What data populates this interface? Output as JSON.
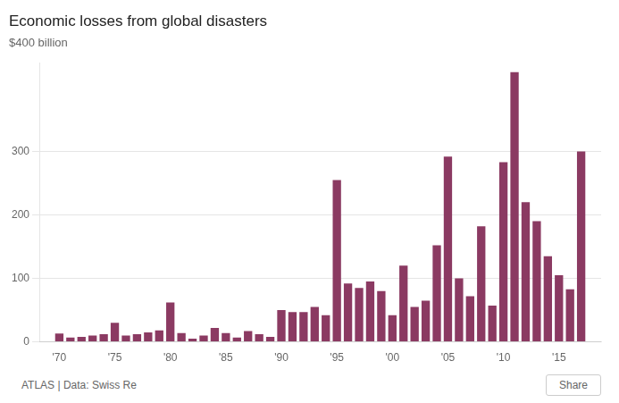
{
  "chart_data": {
    "type": "bar",
    "title": "Economic losses from global disasters",
    "subtitle": "$400 billion",
    "annotations": [
      "ATLAS | Data:  Swiss Re",
      "Share"
    ],
    "x": [
      1970,
      1971,
      1972,
      1973,
      1974,
      1975,
      1976,
      1977,
      1978,
      1979,
      1980,
      1981,
      1982,
      1983,
      1984,
      1985,
      1986,
      1987,
      1988,
      1989,
      1990,
      1991,
      1992,
      1993,
      1994,
      1995,
      1996,
      1997,
      1998,
      1999,
      2000,
      2001,
      2002,
      2003,
      2004,
      2005,
      2006,
      2007,
      2008,
      2009,
      2010,
      2011,
      2012,
      2013,
      2014,
      2015,
      2016,
      2017
    ],
    "values": [
      13,
      7,
      8,
      10,
      12,
      30,
      10,
      12,
      15,
      18,
      62,
      14,
      5,
      10,
      22,
      14,
      7,
      17,
      12,
      8,
      50,
      47,
      47,
      55,
      42,
      255,
      92,
      85,
      95,
      80,
      42,
      120,
      55,
      65,
      152,
      292,
      100,
      72,
      182,
      57,
      283,
      425,
      220,
      190,
      135,
      105,
      83,
      300
    ],
    "color": "#8B3A62",
    "xlim": [
      1968.2,
      2018.8
    ],
    "xticks": [
      {
        "value": 1970,
        "label": "'70"
      },
      {
        "value": 1975,
        "label": "'75"
      },
      {
        "value": 1980,
        "label": "'80"
      },
      {
        "value": 1985,
        "label": "'85"
      },
      {
        "value": 1990,
        "label": "'90"
      },
      {
        "value": 1995,
        "label": "'95"
      },
      {
        "value": 2000,
        "label": "'00"
      },
      {
        "value": 2005,
        "label": "'05"
      },
      {
        "value": 2010,
        "label": "'10"
      },
      {
        "value": 2015,
        "label": "'15"
      }
    ],
    "ylim": [
      0,
      440
    ],
    "yticks": [
      0,
      100,
      200,
      300
    ],
    "grid": "y"
  }
}
